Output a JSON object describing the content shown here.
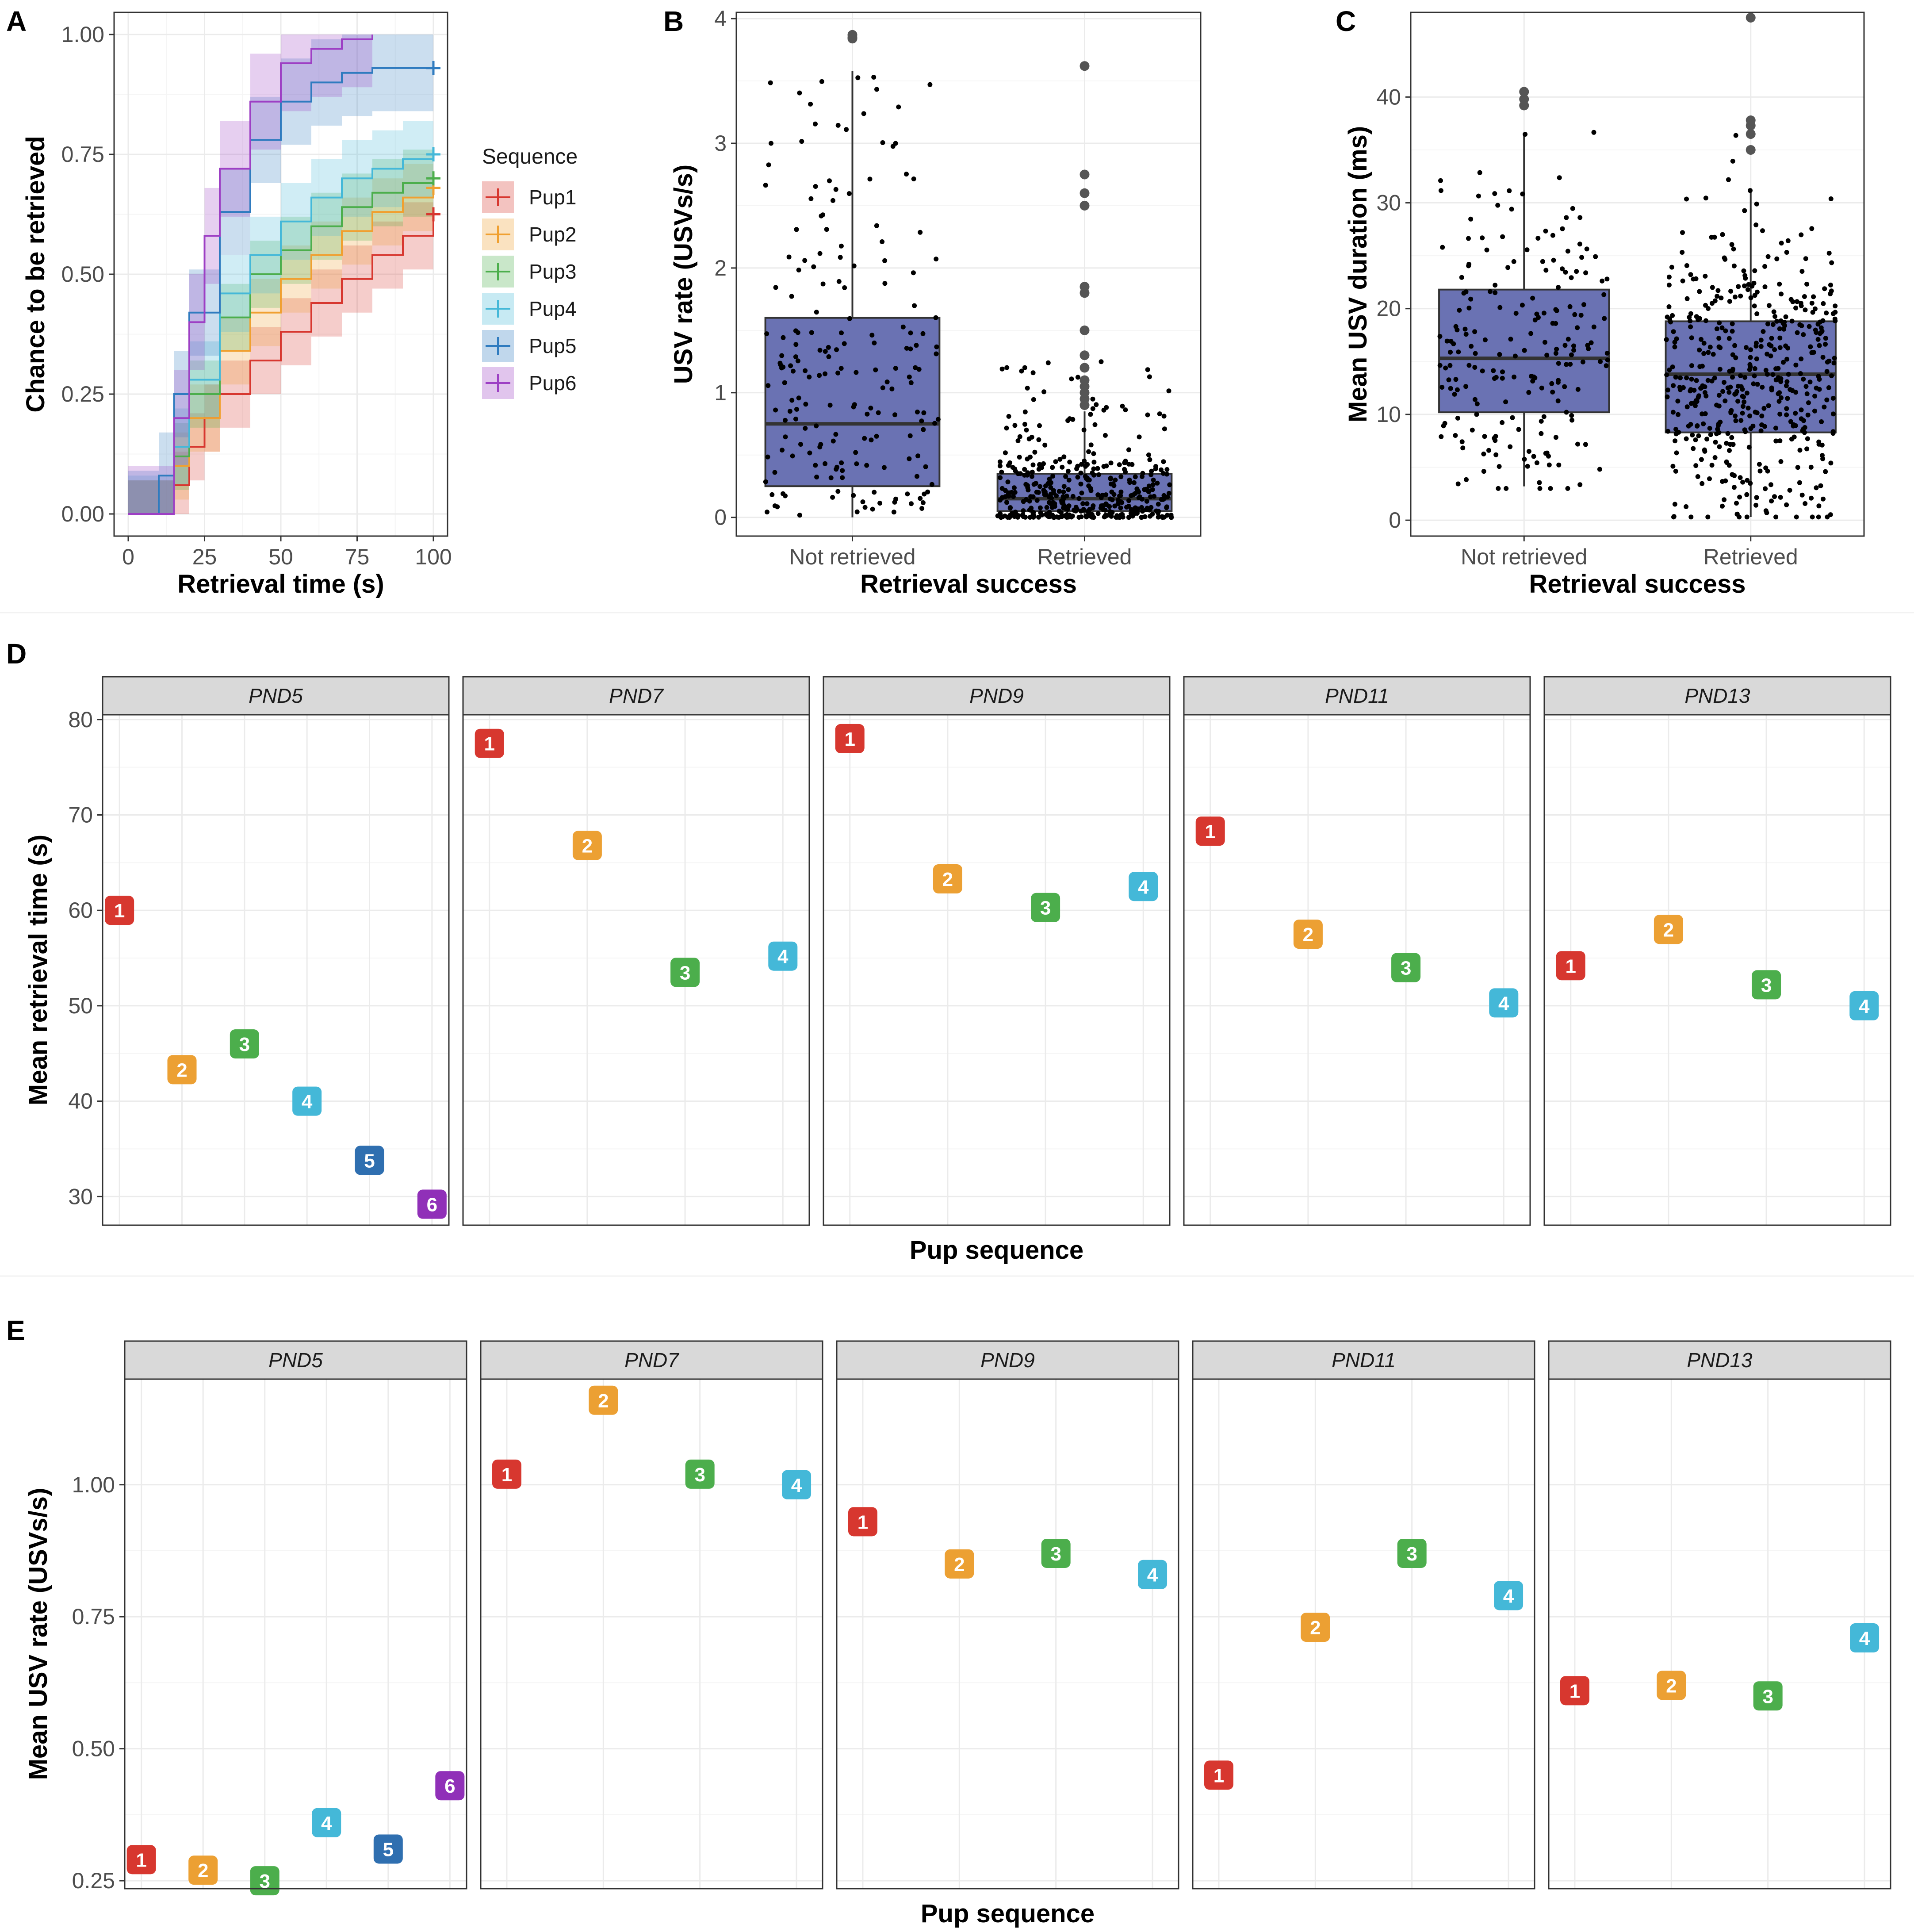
{
  "figure": {
    "panels": [
      "A",
      "B",
      "C",
      "D",
      "E"
    ]
  },
  "chart_data": [
    {
      "id": "A",
      "type": "line",
      "subtype": "step-survival",
      "xlabel": "Retrieval time (s)",
      "ylabel": "Chance to be retrieved",
      "xlim": [
        0,
        100
      ],
      "ylim": [
        0,
        1
      ],
      "xticks": [
        0,
        25,
        50,
        75,
        100
      ],
      "xtick_labels": [
        "0",
        "25",
        "50",
        "75",
        "100"
      ],
      "yticks": [
        0,
        0.25,
        0.5,
        0.75,
        1
      ],
      "ytick_labels": [
        "0.00",
        "0.25",
        "0.50",
        "0.75",
        "1.00"
      ],
      "legend_title": "Sequence",
      "legend_position": "right",
      "series": [
        {
          "name": "Pup1",
          "color": "#d7372f",
          "ci": 0.07,
          "x": [
            0,
            12,
            15,
            20,
            25,
            30,
            40,
            50,
            60,
            70,
            80,
            90,
            100
          ],
          "y": [
            0,
            0,
            0.06,
            0.14,
            0.2,
            0.25,
            0.32,
            0.38,
            0.44,
            0.49,
            0.54,
            0.58,
            0.625
          ]
        },
        {
          "name": "Pup2",
          "color": "#f0a030",
          "ci": 0.07,
          "x": [
            0,
            10,
            15,
            20,
            30,
            40,
            50,
            60,
            70,
            80,
            90,
            100
          ],
          "y": [
            0,
            0,
            0.1,
            0.2,
            0.34,
            0.42,
            0.49,
            0.54,
            0.59,
            0.63,
            0.66,
            0.68
          ]
        },
        {
          "name": "Pup3",
          "color": "#4cae4c",
          "ci": 0.07,
          "x": [
            0,
            10,
            15,
            20,
            30,
            40,
            50,
            60,
            70,
            80,
            90,
            100
          ],
          "y": [
            0,
            0,
            0.12,
            0.25,
            0.41,
            0.5,
            0.55,
            0.6,
            0.64,
            0.67,
            0.69,
            0.7
          ]
        },
        {
          "name": "Pup4",
          "color": "#44b8d8",
          "ci": 0.08,
          "x": [
            0,
            8,
            15,
            20,
            30,
            40,
            50,
            60,
            70,
            80,
            90,
            100
          ],
          "y": [
            0,
            0,
            0.14,
            0.28,
            0.46,
            0.54,
            0.61,
            0.66,
            0.7,
            0.72,
            0.74,
            0.75
          ]
        },
        {
          "name": "Pup5",
          "color": "#2f7bbf",
          "ci": 0.09,
          "x": [
            0,
            5,
            10,
            15,
            20,
            30,
            40,
            50,
            60,
            70,
            80,
            100
          ],
          "y": [
            0,
            0,
            0.08,
            0.25,
            0.42,
            0.63,
            0.78,
            0.86,
            0.9,
            0.92,
            0.93,
            0.93
          ]
        },
        {
          "name": "Pup6",
          "color": "#9d3fc4",
          "ci": 0.1,
          "x": [
            0,
            10,
            15,
            20,
            25,
            30,
            40,
            50,
            60,
            70,
            80
          ],
          "y": [
            0,
            0,
            0.2,
            0.4,
            0.58,
            0.72,
            0.86,
            0.94,
            0.97,
            0.99,
            1.0
          ]
        }
      ]
    },
    {
      "id": "B",
      "type": "boxplot",
      "xlabel": "Retrieval success",
      "ylabel": "USV rate (USVs/s)",
      "categories": [
        "Not retrieved",
        "Retrieved"
      ],
      "ylim": [
        -0.15,
        4.05
      ],
      "yticks": [
        0,
        1,
        2,
        3,
        4
      ],
      "ytick_labels": [
        "0",
        "1",
        "2",
        "3",
        "4"
      ],
      "box_color": "#6a72b3",
      "boxes": [
        {
          "q1": 0.25,
          "median": 0.75,
          "q3": 1.6,
          "whisker_low": 0.0,
          "whisker_high": 3.58,
          "outliers": [
            3.87,
            3.85,
            3.84
          ],
          "n_points": 190,
          "dist": "uniform"
        },
        {
          "q1": 0.05,
          "median": 0.15,
          "q3": 0.35,
          "whisker_low": 0.0,
          "whisker_high": 0.85,
          "outliers": [
            0.9,
            0.95,
            1.0,
            1.05,
            1.1,
            1.2,
            1.3,
            1.5,
            1.8,
            1.85,
            2.5,
            2.6,
            2.75,
            3.62
          ],
          "n_points": 420,
          "dist": "lowskew"
        }
      ]
    },
    {
      "id": "C",
      "type": "boxplot",
      "xlabel": "Retrieval success",
      "ylabel": "Mean USV duration (ms)",
      "categories": [
        "Not retrieved",
        "Retrieved"
      ],
      "ylim": [
        -1.5,
        48
      ],
      "yticks": [
        0,
        10,
        20,
        30,
        40
      ],
      "ytick_labels": [
        "0",
        "10",
        "20",
        "30",
        "40"
      ],
      "box_color": "#6a72b3",
      "boxes": [
        {
          "q1": 10.2,
          "median": 15.3,
          "q3": 21.8,
          "whisker_low": 3.2,
          "whisker_high": 36.5,
          "outliers": [
            39.2,
            39.8,
            40.5
          ],
          "n_points": 200,
          "dist": "normal",
          "mu": 16,
          "sd": 7.5,
          "lo": 3,
          "hi": 40.5
        },
        {
          "q1": 8.3,
          "median": 13.8,
          "q3": 18.8,
          "whisker_low": 0.3,
          "whisker_high": 31.2,
          "outliers": [
            35.0,
            36.5,
            37.3,
            37.8,
            47.5
          ],
          "n_points": 480,
          "dist": "normal",
          "mu": 14,
          "sd": 7,
          "lo": 0.3,
          "hi": 47.6
        }
      ]
    },
    {
      "id": "D",
      "type": "scatter",
      "subtype": "faceted-labels",
      "xlabel": "Pup sequence",
      "ylabel": "Mean retrieval time (s)",
      "ylim": [
        27,
        80.5
      ],
      "yticks": [
        30,
        40,
        50,
        60,
        70,
        80
      ],
      "ytick_labels": [
        "30",
        "40",
        "50",
        "60",
        "70",
        "80"
      ],
      "facets": [
        {
          "name": "PND5",
          "xmax": 6,
          "points": [
            {
              "x": 1,
              "y": 60.0
            },
            {
              "x": 2,
              "y": 43.3
            },
            {
              "x": 3,
              "y": 46.0
            },
            {
              "x": 4,
              "y": 40.0
            },
            {
              "x": 5,
              "y": 33.8
            },
            {
              "x": 6,
              "y": 29.2
            }
          ]
        },
        {
          "name": "PND7",
          "xmax": 4,
          "points": [
            {
              "x": 1,
              "y": 77.5
            },
            {
              "x": 2,
              "y": 66.8
            },
            {
              "x": 3,
              "y": 53.5
            },
            {
              "x": 4,
              "y": 55.2
            }
          ]
        },
        {
          "name": "PND9",
          "xmax": 4,
          "points": [
            {
              "x": 1,
              "y": 78.0
            },
            {
              "x": 2,
              "y": 63.3
            },
            {
              "x": 3,
              "y": 60.3
            },
            {
              "x": 4,
              "y": 62.5
            }
          ]
        },
        {
          "name": "PND11",
          "xmax": 4,
          "points": [
            {
              "x": 1,
              "y": 68.3
            },
            {
              "x": 2,
              "y": 57.5
            },
            {
              "x": 3,
              "y": 54.0
            },
            {
              "x": 4,
              "y": 50.3
            }
          ]
        },
        {
          "name": "PND13",
          "xmax": 4,
          "points": [
            {
              "x": 1,
              "y": 54.2
            },
            {
              "x": 2,
              "y": 58.0
            },
            {
              "x": 3,
              "y": 52.2
            },
            {
              "x": 4,
              "y": 50.0
            }
          ]
        }
      ],
      "label_colors": {
        "1": "#d7372f",
        "2": "#eca033",
        "3": "#4cae4c",
        "4": "#44b8d8",
        "5": "#2f6fb0",
        "6": "#9030b8"
      }
    },
    {
      "id": "E",
      "type": "scatter",
      "subtype": "faceted-labels",
      "xlabel": "Pup sequence",
      "ylabel": "Mean USV rate (USVs/s)",
      "ylim": [
        0.235,
        1.2
      ],
      "yticks": [
        0.25,
        0.5,
        0.75,
        1.0
      ],
      "ytick_labels": [
        "0.25",
        "0.50",
        "0.75",
        "1.00"
      ],
      "facets": [
        {
          "name": "PND5",
          "xmax": 6,
          "points": [
            {
              "x": 1,
              "y": 0.29
            },
            {
              "x": 2,
              "y": 0.27
            },
            {
              "x": 3,
              "y": 0.25
            },
            {
              "x": 4,
              "y": 0.36
            },
            {
              "x": 5,
              "y": 0.31
            },
            {
              "x": 6,
              "y": 0.43
            }
          ]
        },
        {
          "name": "PND7",
          "xmax": 4,
          "points": [
            {
              "x": 1,
              "y": 1.02
            },
            {
              "x": 2,
              "y": 1.16
            },
            {
              "x": 3,
              "y": 1.02
            },
            {
              "x": 4,
              "y": 1.0
            }
          ]
        },
        {
          "name": "PND9",
          "xmax": 4,
          "points": [
            {
              "x": 1,
              "y": 0.93
            },
            {
              "x": 2,
              "y": 0.85
            },
            {
              "x": 3,
              "y": 0.87
            },
            {
              "x": 4,
              "y": 0.83
            }
          ]
        },
        {
          "name": "PND11",
          "xmax": 4,
          "points": [
            {
              "x": 1,
              "y": 0.45
            },
            {
              "x": 2,
              "y": 0.73
            },
            {
              "x": 3,
              "y": 0.87
            },
            {
              "x": 4,
              "y": 0.79
            }
          ]
        },
        {
          "name": "PND13",
          "xmax": 4,
          "points": [
            {
              "x": 1,
              "y": 0.61
            },
            {
              "x": 2,
              "y": 0.62
            },
            {
              "x": 3,
              "y": 0.6
            },
            {
              "x": 4,
              "y": 0.71
            }
          ]
        }
      ],
      "label_colors": {
        "1": "#d7372f",
        "2": "#eca033",
        "3": "#4cae4c",
        "4": "#44b8d8",
        "5": "#2f6fb0",
        "6": "#9030b8"
      }
    }
  ]
}
